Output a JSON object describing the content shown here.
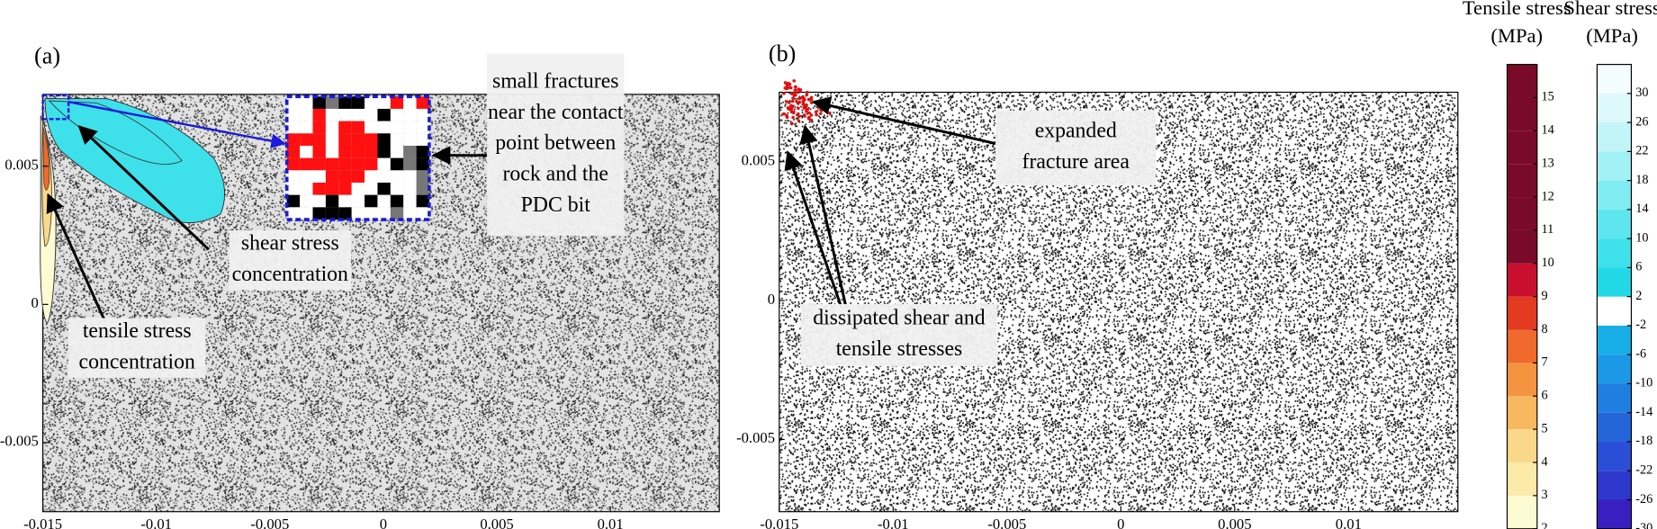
{
  "panels": [
    {
      "label": "(a)",
      "xlim": [
        -0.015,
        0.0148
      ],
      "ylim": [
        -0.0075,
        0.0076
      ],
      "xticks": [
        -0.015,
        -0.01,
        -0.005,
        0,
        0.005,
        0.01
      ],
      "yticks": [
        -0.005,
        0,
        0.005
      ],
      "annotations": [
        {
          "lines": [
            "small fractures",
            "near the contact",
            "point between",
            "rock and the",
            "PDC bit"
          ]
        },
        {
          "lines": [
            "shear stress",
            "concentration"
          ]
        },
        {
          "lines": [
            "tensile stress",
            "concentration"
          ]
        }
      ]
    },
    {
      "label": "(b)",
      "xlim": [
        -0.015,
        0.0148
      ],
      "ylim": [
        -0.0076,
        0.0075
      ],
      "xticks": [
        -0.015,
        -0.01,
        -0.005,
        0,
        0.005,
        0.01
      ],
      "yticks": [
        -0.005,
        0,
        0.005
      ],
      "annotations": [
        {
          "lines": [
            "expanded",
            "fracture area"
          ]
        },
        {
          "lines": [
            "dissipated shear and",
            "tensile stresses"
          ]
        }
      ]
    }
  ],
  "colorbars": [
    {
      "title": [
        "Tensile stress",
        "(MPa)"
      ],
      "lim": [
        2,
        16
      ],
      "step": 1,
      "ticks": [
        2,
        3,
        4,
        5,
        6,
        7,
        8,
        9,
        10,
        11,
        12,
        13,
        14,
        15
      ],
      "colors": [
        "#fdfbd2",
        "#fbeaa8",
        "#f9d88a",
        "#f7b860",
        "#f49440",
        "#ef6a2c",
        "#e43a22",
        "#c8102e",
        "#7a0a2a",
        "#7a0a2a",
        "#7a0a2a",
        "#7a0a2a",
        "#7a0a2a",
        "#7a0a2a"
      ]
    },
    {
      "title": [
        "Shear stress",
        "(MPa)"
      ],
      "lim": [
        -30,
        34
      ],
      "step": 4,
      "ticks": [
        -30,
        -26,
        -22,
        -18,
        -14,
        -10,
        -6,
        -2,
        2,
        6,
        10,
        14,
        18,
        22,
        26,
        30
      ],
      "colors": [
        "#3a1fc0",
        "#2e37cc",
        "#2a4fd6",
        "#2466da",
        "#1e7fe0",
        "#1b98e6",
        "#17aee8",
        "#ffffff",
        "#22d8e6",
        "#3ee0ea",
        "#5ee6ee",
        "#80ecf2",
        "#a2f1f5",
        "#c2f5f8",
        "#def9fb",
        "#f4fdfe"
      ]
    }
  ]
}
